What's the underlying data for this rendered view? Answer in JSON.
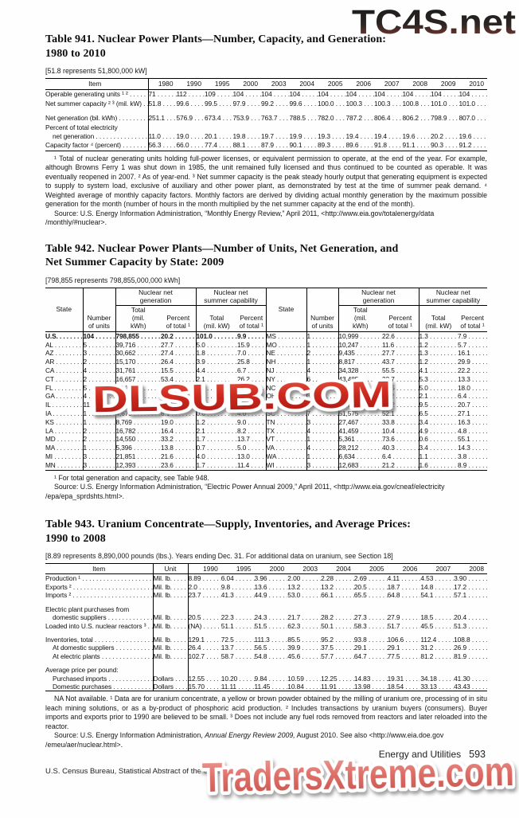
{
  "watermarks": {
    "top": "TC4S.net",
    "middle": "DLSUB.COM",
    "bottom": "TradersXtreme.com"
  },
  "footer": {
    "section": "Energy and Utilities",
    "page": "593",
    "credit": "U.S. Census Bureau, Statistical Abstract of the United States: 2012"
  },
  "table941": {
    "title": "Table 941. Nuclear Power Plants—Number, Capacity, and Generation:\n1980 to 2010",
    "bracket": "[51.8 represents 51,800,000 kW]",
    "columns": [
      "Item",
      "1980",
      "1990",
      "1995",
      "2000",
      "2003",
      "2004",
      "2005",
      "2006",
      "2007",
      "2008",
      "2009",
      "2010"
    ],
    "rows": [
      {
        "cls": "lead",
        "c": [
          "Operable generating units ¹ ²",
          "71",
          "112",
          "109",
          "104",
          "104",
          "104",
          "104",
          "104",
          "104",
          "104",
          "104",
          "104"
        ]
      },
      {
        "cls": "lead",
        "c": [
          "Net summer capacity ² ³ (mil. kW)",
          "51.8",
          "99.6",
          "99.5",
          "97.9",
          "99.2",
          "99.6",
          "100.0",
          "100.3",
          "100.3",
          "100.8",
          "101.0",
          "101.0"
        ]
      },
      {
        "cls": "spacer",
        "c": [
          ""
        ]
      },
      {
        "cls": "lead",
        "c": [
          "Net generation (bil. kWh)",
          "251.1",
          "576.9",
          "673.4",
          "753.9",
          "763.7",
          "788.5",
          "782.0",
          "787.2",
          "806.4",
          "806.2",
          "798.9",
          "807.0"
        ]
      },
      {
        "cls": "nodots",
        "c": [
          "Percent of total electricity"
        ]
      },
      {
        "cls": "lead indent",
        "c": [
          "net generation",
          "11.0",
          "19.0",
          "20.1",
          "19.8",
          "19.7",
          "19.9",
          "19.3",
          "19.4",
          "19.4",
          "19.6",
          "20.2",
          "19.6"
        ]
      },
      {
        "cls": "lead",
        "c": [
          "Capacity factor ⁴ (percent)",
          "56.3",
          "66.0",
          "77.4",
          "88.1",
          "87.9",
          "90.1",
          "89.3",
          "89.6",
          "91.8",
          "91.1",
          "90.3",
          "91.2"
        ]
      }
    ],
    "footnote": "¹ Total of nuclear generating units holding full-power licenses, or equivalent permission to operate, at the end of the year. For example, although Browns Ferry 1 was shut down in 1985, the unit remained fully licensed and thus continued to be counted as operable. It was eventually reopened in 2007. ² As of year-end. ³ Net summer capacity is the peak steady hourly output that generating equipment is expected to supply to system load, exclusive of auxiliary and other power plant, as demonstrated by test at the time of summer peak demand. ⁴ Weighted average of monthly capacity factors. Monthly factors are derived by dividing actual monthly generation by the maximum possible generation for the month (number of hours in the month multiplied by the net summer capacity at the end of the month).",
    "source": "Source: U.S. Energy Information Administration, “Monthly Energy Review,” April 2011, <http://www.eia.gov/totalenergy/data /monthly/#nuclear>."
  },
  "table942": {
    "title": "Table 942. Nuclear Power Plants—Number of Units, Net Generation, and\nNet Summer Capacity by State: 2009",
    "bracket": "[798,855 represents 798,855,000,000 kWh]",
    "header": {
      "state": "State",
      "units": "Number\nof units",
      "gen_group": "Nuclear net\ngeneration",
      "cap_group": "Nuclear net\nsummer capability",
      "gen_total": "Total\n(mil.\nkWh)",
      "gen_pct": "Percent\nof total ¹",
      "cap_total": "Total\n(mil. kW)",
      "cap_pct": "Percent\nof total ¹"
    },
    "rows": [
      {
        "cls": "lead bold-left",
        "c": [
          "U.S.",
          "104",
          "798,855",
          "20.2",
          "101.0",
          "9.9",
          "MS",
          "1",
          "10,999",
          "22.6",
          "1.3",
          "7.9"
        ]
      },
      {
        "cls": "lead",
        "c": [
          "AL",
          "5",
          "39,716",
          "27.7",
          "5.0",
          "15.9",
          "MO",
          "1",
          "10,247",
          "11.6",
          "1.2",
          "5.7"
        ]
      },
      {
        "cls": "lead",
        "c": [
          "AZ",
          "3",
          "30,662",
          "27.4",
          "1.8",
          "7.0",
          "NE",
          "2",
          "9,435",
          "27.7",
          "1.3",
          "16.1"
        ]
      },
      {
        "cls": "lead",
        "c": [
          "AR",
          "2",
          "15,170",
          "26.4",
          "3.9",
          "25.8",
          "NH",
          "1",
          "8,817",
          "43.7",
          "1.2",
          "29.9"
        ]
      },
      {
        "cls": "lead",
        "c": [
          "CA",
          "4",
          "31,761",
          "15.5",
          "4.4",
          "6.7",
          "NJ",
          "4",
          "34,328",
          "55.5",
          "4.1",
          "22.2"
        ]
      },
      {
        "cls": "lead",
        "c": [
          "CT",
          "2",
          "16,657",
          "53.4",
          "2.1",
          "26.2",
          "NY",
          "6",
          "43,485",
          "32.7",
          "5.3",
          "13.3"
        ]
      },
      {
        "cls": "lead",
        "c": [
          "FL",
          "5",
          "29,118",
          "13.4",
          "3.9",
          "6.6",
          "NC",
          "5",
          "40,848",
          "34.5",
          "5.0",
          "18.0"
        ]
      },
      {
        "cls": "lead",
        "c": [
          "GA",
          "4",
          "31,683",
          "24.6",
          "4.1",
          "11.1",
          "OH",
          "3",
          "15,206",
          "11.2",
          "2.1",
          "6.4"
        ]
      },
      {
        "cls": "lead",
        "c": [
          "IL",
          "11",
          "95,474",
          "49.1",
          "11.4",
          "26.0",
          "PA",
          "9",
          "77,863",
          "35.2",
          "9.5",
          "20.7"
        ]
      },
      {
        "cls": "lead",
        "c": [
          "IA",
          "1",
          "4,675",
          "8.1",
          "0.6",
          "4.0",
          "SC",
          "7",
          "51,575",
          "52.1",
          "6.5",
          "27.1"
        ]
      },
      {
        "cls": "lead",
        "c": [
          "KS",
          "1",
          "8,769",
          "19.0",
          "1.2",
          "9.0",
          "TN",
          "3",
          "27,467",
          "33.8",
          "3.4",
          "16.3"
        ]
      },
      {
        "cls": "lead",
        "c": [
          "LA",
          "2",
          "16,782",
          "16.4",
          "2.1",
          "8.2",
          "TX",
          "4",
          "41,459",
          "10.4",
          "4.9",
          "4.8"
        ]
      },
      {
        "cls": "lead",
        "c": [
          "MD",
          "2",
          "14,550",
          "33.2",
          "1.7",
          "13.7",
          "VT",
          "1",
          "5,361",
          "73.6",
          "0.6",
          "55.1"
        ]
      },
      {
        "cls": "lead",
        "c": [
          "MA",
          "1",
          "5,396",
          "13.8",
          "0.7",
          "5.0",
          "VA",
          "4",
          "28,212",
          "40.3",
          "3.4",
          "14.3"
        ]
      },
      {
        "cls": "lead",
        "c": [
          "MI",
          "3",
          "21,851",
          "21.6",
          "4.0",
          "13.0",
          "WA",
          "1",
          "6,634",
          "6.4",
          "1.1",
          "3.8"
        ]
      },
      {
        "cls": "lead",
        "c": [
          "MN",
          "3",
          "12,393",
          "23.6",
          "1.7",
          "11.4",
          "WI",
          "3",
          "12,683",
          "21.2",
          "1.6",
          "8.9"
        ]
      }
    ],
    "footnote": "¹ For total generation and capacity, see Table 948.",
    "source": "Source: U.S. Energy Information Administration, “Electric Power Annual 2009,” April 2011, <http://www.eia.gov/cneaf/electricity /epa/epa_sprdshts.html>."
  },
  "table943": {
    "title": "Table 943. Uranium Concentrate—Supply, Inventories, and Average Prices:\n1990 to 2008",
    "bracket": "[8.89 represents 8,890,000 pounds (lbs.). Years ending Dec. 31. For additional data on uranium, see Section 18]",
    "columns": [
      "Item",
      "Unit",
      "1990",
      "1995",
      "2000",
      "2003",
      "2004",
      "2005",
      "2006",
      "2007",
      "2008"
    ],
    "rows": [
      {
        "cls": "lead",
        "c": [
          "Production ¹",
          "Mil. lb.",
          "8.89",
          "6.04",
          "3.96",
          "2.00",
          "2.28",
          "2.69",
          "4.11",
          "4.53",
          "3.90"
        ]
      },
      {
        "cls": "lead",
        "c": [
          "Exports ²",
          "Mil. lb.",
          "2.0",
          "9.8",
          "13.6",
          "13.2",
          "13.2",
          "20.5",
          "18.7",
          "14.8",
          "17.2"
        ]
      },
      {
        "cls": "lead",
        "c": [
          "Imports ²",
          "Mil. lb.",
          "23.7",
          "41.3",
          "44.9",
          "53.0",
          "66.1",
          "65.5",
          "64.8",
          "54.1",
          "57.1"
        ]
      },
      {
        "cls": "spacer",
        "c": [
          "",
          ""
        ]
      },
      {
        "cls": "nodots",
        "c": [
          "Electric plant purchases from",
          ""
        ]
      },
      {
        "cls": "lead indent",
        "c": [
          "domestic suppliers",
          "Mil. lb.",
          "20.5",
          "22.3",
          "24.3",
          "21.7",
          "28.2",
          "27.3",
          "27.9",
          "18.5",
          "20.4"
        ]
      },
      {
        "cls": "lead",
        "c": [
          "Loaded into U.S. nuclear reactors ³",
          "Mil. lb.",
          "(NA)",
          "51.1",
          "51.5",
          "62.3",
          "50.1",
          "58.3",
          "51.7",
          "45.5",
          "51.3"
        ]
      },
      {
        "cls": "spacer",
        "c": [
          "",
          ""
        ]
      },
      {
        "cls": "lead",
        "c": [
          "Inventories, total",
          "Mil. lb.",
          "129.1",
          "72.5",
          "111.3",
          "85.5",
          "95.2",
          "93.8",
          "106.6",
          "112.4",
          "108.8"
        ]
      },
      {
        "cls": "lead indent",
        "c": [
          "At domestic suppliers",
          "Mil. lb.",
          "26.4",
          "13.7",
          "56.5",
          "39.9",
          "37.5",
          "29.1",
          "29.1",
          "31.2",
          "26.9"
        ]
      },
      {
        "cls": "lead indent",
        "c": [
          "At electric plants",
          "Mil. lb.",
          "102.7",
          "58.7",
          "54.8",
          "45.6",
          "57.7",
          "64.7",
          "77.5",
          "81.2",
          "81.9"
        ]
      },
      {
        "cls": "spacer",
        "c": [
          "",
          ""
        ]
      },
      {
        "cls": "nodots",
        "c": [
          "Average price per pound:",
          ""
        ]
      },
      {
        "cls": "lead indent",
        "c": [
          "Purchased imports",
          "Dollars",
          "12.55",
          "10.20",
          "9.84",
          "10.59",
          "12.25",
          "14.83",
          "19.31",
          "34.18",
          "41.30"
        ]
      },
      {
        "cls": "lead indent",
        "c": [
          "Domestic purchases",
          "Dollars",
          "15.70",
          "11.11",
          "11.45",
          "10.84",
          "11.91",
          "13.98",
          "18.54",
          "33.13",
          "43.43"
        ]
      }
    ],
    "footnote": "NA Not available. ¹ Data are for uranium concentrate, a yellow or brown powder obtained by the milling of uranium ore, processing of in situ leach mining solutions, or as a by-product of phosphoric acid production. ² Includes transactions by uranium buyers (consumers). Buyer imports and exports prior to 1990 are believed to be small. ³ Does not include any fuel rods removed from reactors and later reloaded into the reactor.",
    "source_prefix": "Source: U.S. Energy Information Administration, ",
    "source_italic": "Annual Energy Review 2009,",
    "source_suffix": " August 2010. See also <http://www.eia.doe.gov /emeu/aer/nuclear.html>."
  }
}
